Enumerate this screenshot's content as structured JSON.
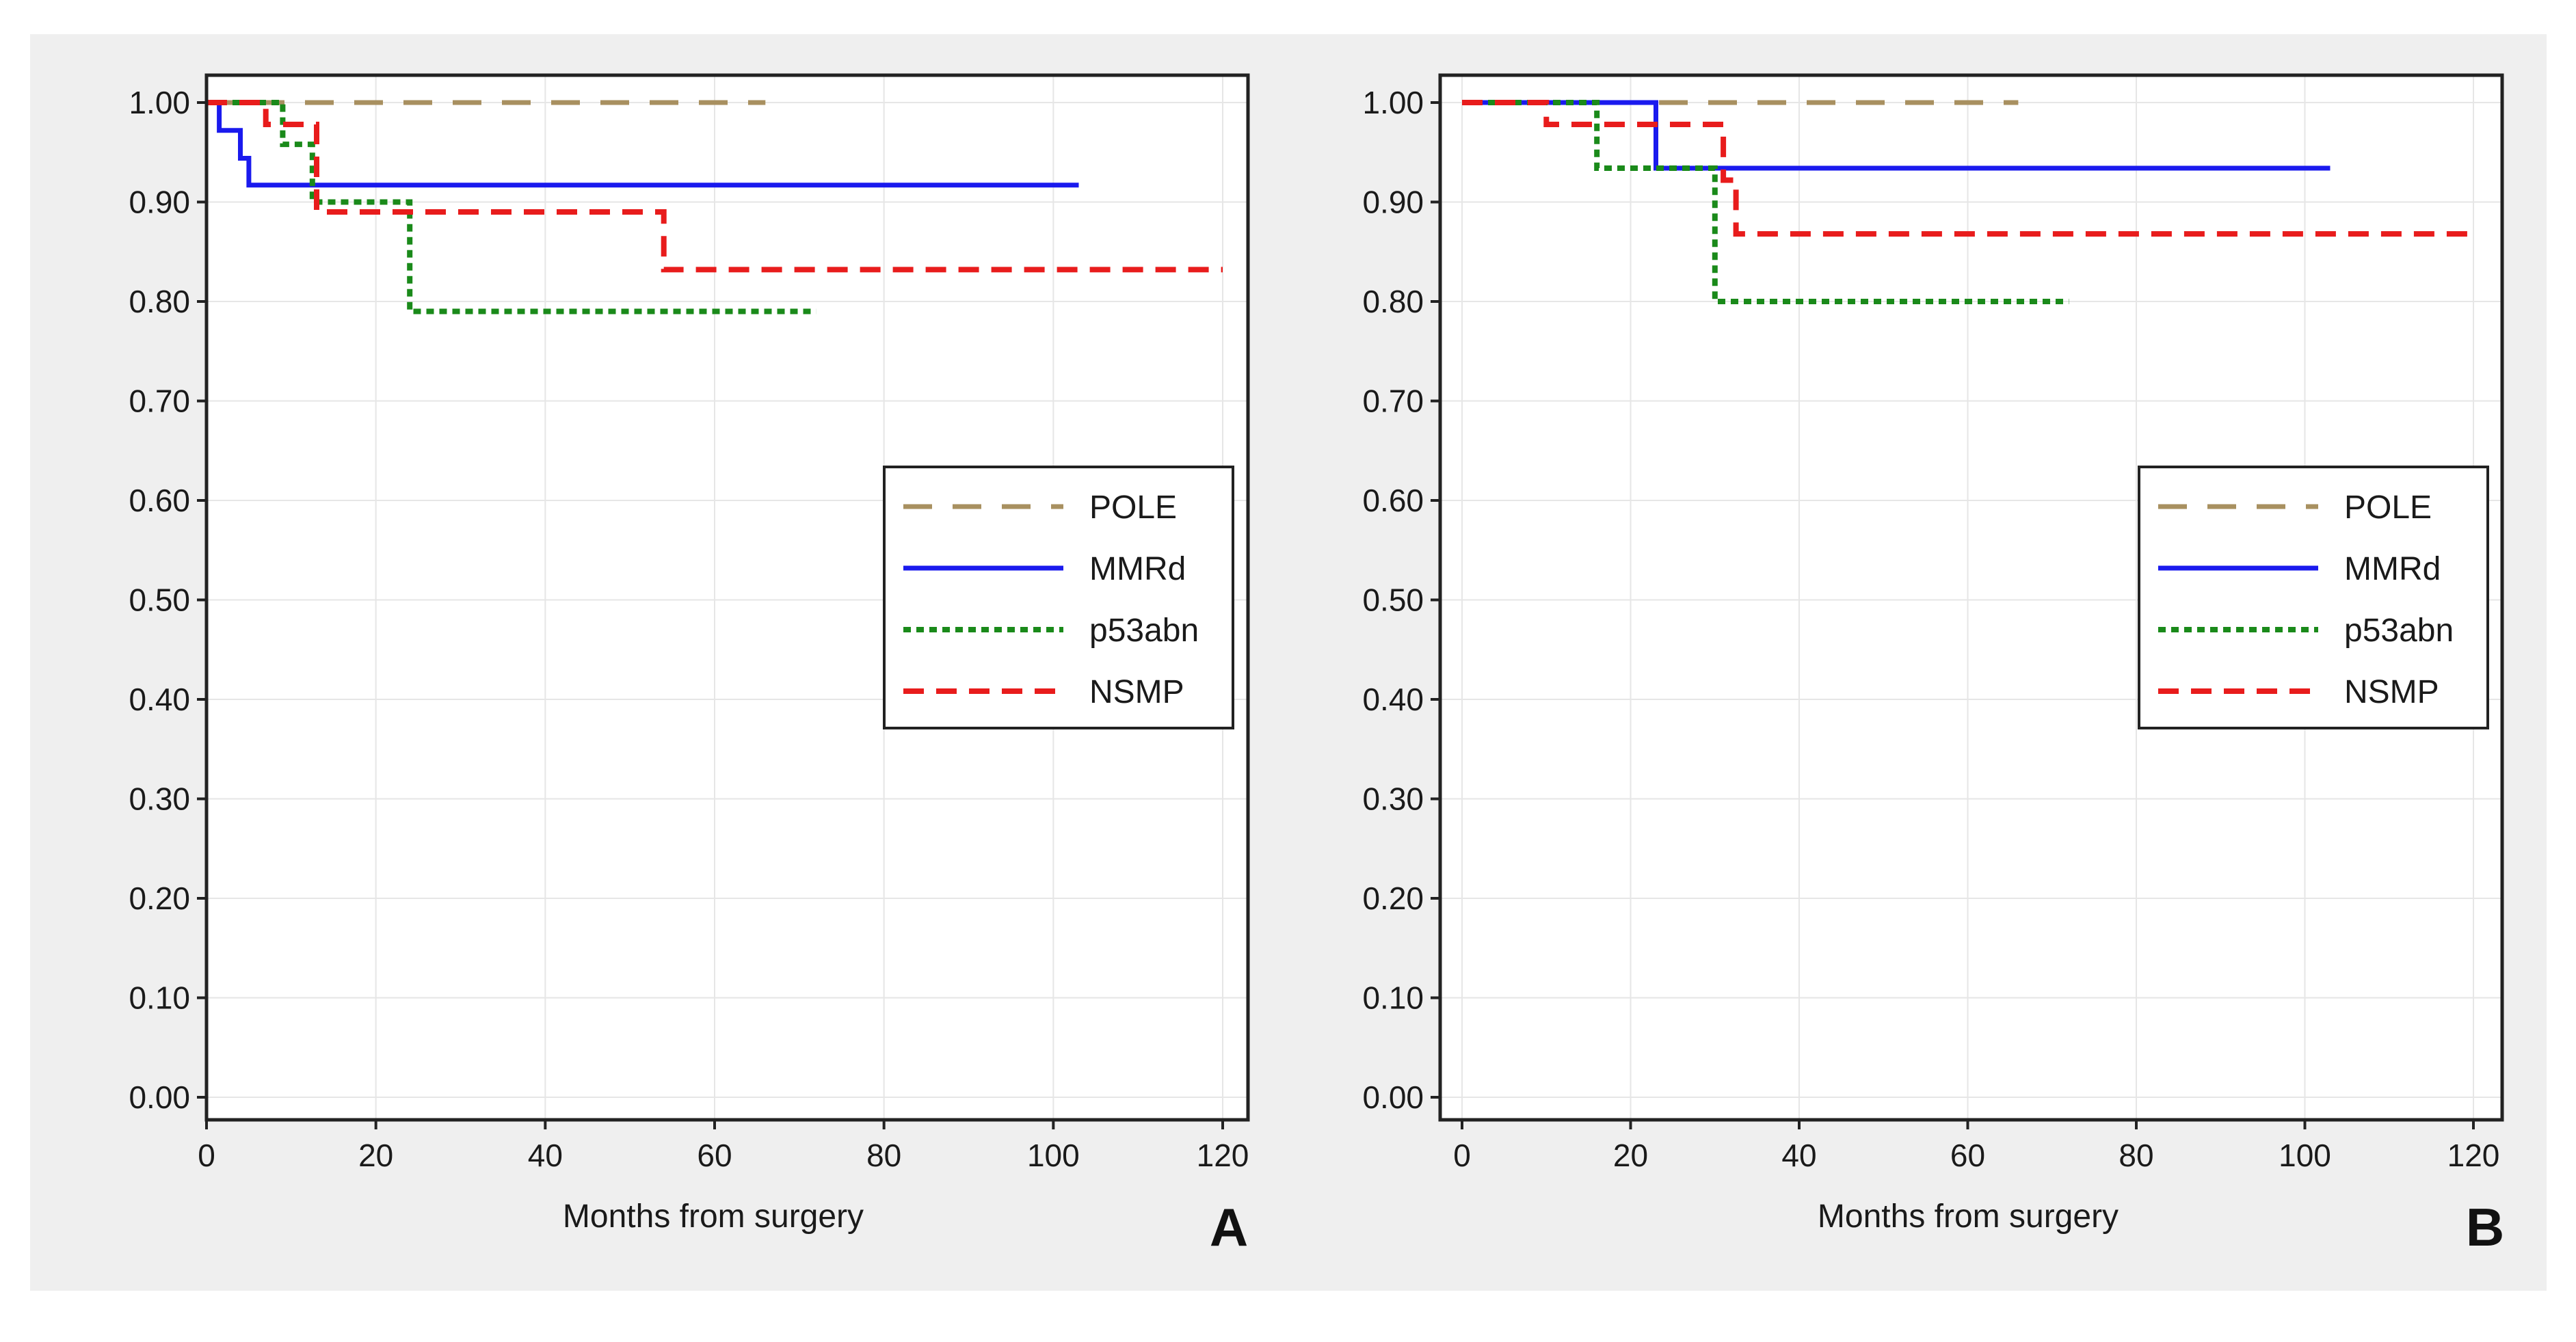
{
  "colors": {
    "panel_bg": "#efefef",
    "plot_bg": "#ffffff",
    "grid": "#e6e6e6",
    "axis": "#222222",
    "text": "#1a1a1a",
    "POLE": "#a89060",
    "MMRd": "#1a1aee",
    "p53abn": "#1a8a1a",
    "NSMP": "#e81c1c"
  },
  "chart_data": [
    {
      "panel_label": "A",
      "type": "line",
      "step": true,
      "xlabel": "Months from surgery",
      "ylabel": "",
      "xlim": [
        0,
        120
      ],
      "ylim": [
        0,
        1
      ],
      "xticks": [
        0,
        20,
        40,
        60,
        80,
        100,
        120
      ],
      "xtick_labels": [
        "0",
        "20",
        "40",
        "60",
        "80",
        "100",
        "120"
      ],
      "yticks": [
        0,
        0.1,
        0.2,
        0.3,
        0.4,
        0.5,
        0.6,
        0.7,
        0.8,
        0.9,
        1.0
      ],
      "ytick_labels": [
        "0.00",
        "0.10",
        "0.20",
        "0.30",
        "0.40",
        "0.50",
        "0.60",
        "0.70",
        "0.80",
        "0.90",
        "1.00"
      ],
      "grid": true,
      "legend_position": "center-right",
      "series": [
        {
          "name": "POLE",
          "style": "longdash",
          "points": [
            [
              0,
              1.0
            ],
            [
              66,
              1.0
            ]
          ]
        },
        {
          "name": "MMRd",
          "style": "solid",
          "points": [
            [
              0,
              1.0
            ],
            [
              1.5,
              1.0
            ],
            [
              1.5,
              0.972
            ],
            [
              4,
              0.972
            ],
            [
              4,
              0.944
            ],
            [
              5,
              0.944
            ],
            [
              5,
              0.917
            ],
            [
              103,
              0.917
            ]
          ]
        },
        {
          "name": "p53abn",
          "style": "dotted",
          "points": [
            [
              0,
              1.0
            ],
            [
              9,
              1.0
            ],
            [
              9,
              0.958
            ],
            [
              12.5,
              0.958
            ],
            [
              12.5,
              0.9
            ],
            [
              24,
              0.9
            ],
            [
              24,
              0.79
            ],
            [
              72,
              0.79
            ]
          ]
        },
        {
          "name": "NSMP",
          "style": "dashed",
          "points": [
            [
              0,
              1.0
            ],
            [
              7,
              1.0
            ],
            [
              7,
              0.978
            ],
            [
              13,
              0.978
            ],
            [
              13,
              0.89
            ],
            [
              54,
              0.89
            ],
            [
              54,
              0.832
            ],
            [
              120,
              0.832
            ]
          ]
        }
      ]
    },
    {
      "panel_label": "B",
      "type": "line",
      "step": true,
      "xlabel": "Months from surgery",
      "ylabel": "",
      "xlim": [
        0,
        120
      ],
      "ylim": [
        0,
        1
      ],
      "xticks": [
        0,
        20,
        40,
        60,
        80,
        100,
        120
      ],
      "xtick_labels": [
        "0",
        "20",
        "40",
        "60",
        "80",
        "100",
        "120"
      ],
      "yticks": [
        0,
        0.1,
        0.2,
        0.3,
        0.4,
        0.5,
        0.6,
        0.7,
        0.8,
        0.9,
        1.0
      ],
      "ytick_labels": [
        "0.00",
        "0.10",
        "0.20",
        "0.30",
        "0.40",
        "0.50",
        "0.60",
        "0.70",
        "0.80",
        "0.90",
        "1.00"
      ],
      "grid": true,
      "legend_position": "center-right",
      "series": [
        {
          "name": "POLE",
          "style": "longdash",
          "points": [
            [
              0,
              1.0
            ],
            [
              66,
              1.0
            ]
          ]
        },
        {
          "name": "MMRd",
          "style": "solid",
          "points": [
            [
              0,
              1.0
            ],
            [
              23,
              1.0
            ],
            [
              23,
              0.934
            ],
            [
              103,
              0.934
            ]
          ]
        },
        {
          "name": "p53abn",
          "style": "dotted",
          "points": [
            [
              0,
              1.0
            ],
            [
              16,
              1.0
            ],
            [
              16,
              0.934
            ],
            [
              30,
              0.934
            ],
            [
              30,
              0.8
            ],
            [
              72,
              0.8
            ]
          ]
        },
        {
          "name": "NSMP",
          "style": "dashed",
          "points": [
            [
              0,
              1.0
            ],
            [
              10,
              1.0
            ],
            [
              10,
              0.978
            ],
            [
              31,
              0.978
            ],
            [
              31,
              0.922
            ],
            [
              32.5,
              0.922
            ],
            [
              32.5,
              0.868
            ],
            [
              120,
              0.868
            ]
          ]
        }
      ]
    }
  ]
}
